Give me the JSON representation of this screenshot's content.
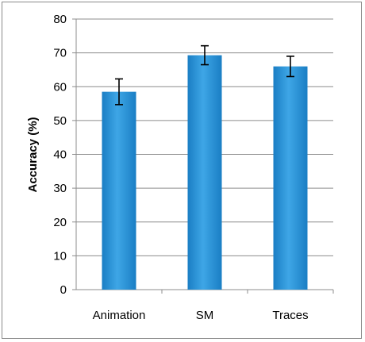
{
  "chart_data": {
    "type": "bar",
    "categories": [
      "Animation",
      "SM",
      "Traces"
    ],
    "values": [
      58.5,
      69.3,
      66.0
    ],
    "error": [
      3.8,
      2.8,
      3.0
    ],
    "title": "",
    "xlabel": "",
    "ylabel": "Accuracy (%)",
    "ylim": [
      0,
      80
    ],
    "yticks": [
      0,
      10,
      20,
      30,
      40,
      50,
      60,
      70,
      80
    ],
    "grid": true,
    "legend": "none",
    "colors": {
      "bar": "#1a7ec4",
      "bar_light": "#3ea6e6",
      "grid": "#8c8c8c",
      "error": "#000000"
    }
  }
}
